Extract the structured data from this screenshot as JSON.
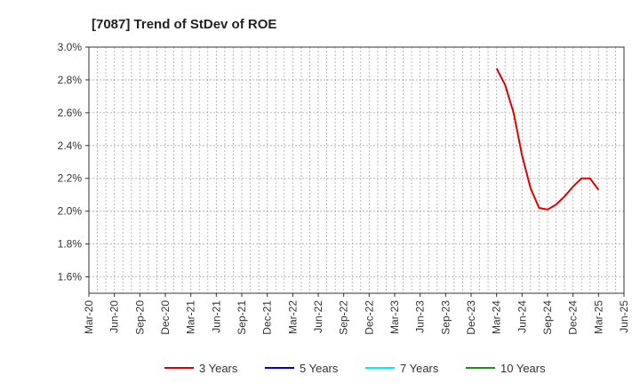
{
  "chart_data": {
    "type": "line",
    "title": "[7087]  Trend of StDev of ROE",
    "xlabel": "",
    "ylabel": "",
    "ylim": [
      1.5,
      3.0
    ],
    "yticks": [
      1.6,
      1.8,
      2.0,
      2.2,
      2.4,
      2.6,
      2.8,
      3.0
    ],
    "ytick_labels": [
      "1.6%",
      "1.8%",
      "2.0%",
      "2.2%",
      "2.4%",
      "2.6%",
      "2.8%",
      "3.0%"
    ],
    "x_start": "Mar-20",
    "x_month_count": 63,
    "xticks": [
      "Mar-20",
      "Jun-20",
      "Sep-20",
      "Dec-20",
      "Mar-21",
      "Jun-21",
      "Sep-21",
      "Dec-21",
      "Mar-22",
      "Jun-22",
      "Sep-22",
      "Dec-22",
      "Mar-23",
      "Jun-23",
      "Sep-23",
      "Dec-23",
      "Mar-24",
      "Jun-24",
      "Sep-24",
      "Dec-24",
      "Mar-25",
      "Jun-25"
    ],
    "grid": true,
    "legend_position": "bottom",
    "series": [
      {
        "name": "3 Years",
        "color": "#dd0000",
        "x": [
          "Mar-24",
          "Apr-24",
          "May-24",
          "Jun-24",
          "Jul-24",
          "Aug-24",
          "Sep-24",
          "Oct-24",
          "Nov-24",
          "Dec-24",
          "Jan-25",
          "Feb-25",
          "Mar-25"
        ],
        "values": [
          2.87,
          2.77,
          2.6,
          2.34,
          2.14,
          2.02,
          2.01,
          2.04,
          2.09,
          2.15,
          2.2,
          2.2,
          2.13
        ]
      },
      {
        "name": "5 Years",
        "color": "#0000cc",
        "x": [],
        "values": []
      },
      {
        "name": "7 Years",
        "color": "#00eeee",
        "x": [],
        "values": []
      },
      {
        "name": "10 Years",
        "color": "#228b22",
        "x": [],
        "values": []
      }
    ]
  }
}
